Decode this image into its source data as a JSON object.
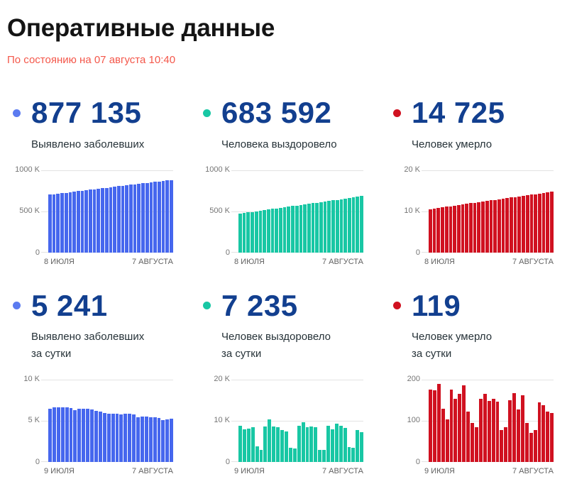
{
  "page": {
    "title": "Оперативные данные",
    "subtitle": "По состоянию на 07 августа 10:40"
  },
  "colors": {
    "blue_bar": "#4667ee",
    "blue_dot": "#5b7bf0",
    "teal_bar": "#18c7a4",
    "teal_dot": "#18c7a4",
    "red_bar": "#d01120",
    "red_dot": "#d01120",
    "number_navy": "#123f8f",
    "subtitle_red": "#f4574a",
    "gridline": "#e3e3e3",
    "axis_text": "#757575"
  },
  "cards": [
    {
      "value": "877 135",
      "label_lines": [
        "Выявлено заболевших"
      ],
      "dot_color": "#5b7bf0"
    },
    {
      "value": "683 592",
      "label_lines": [
        "Человека выздоровело"
      ],
      "dot_color": "#18c7a4"
    },
    {
      "value": "14 725",
      "label_lines": [
        "Человек умерло"
      ],
      "dot_color": "#d01120"
    },
    {
      "value": "5 241",
      "label_lines": [
        "Выявлено заболевших",
        "за сутки"
      ],
      "dot_color": "#5b7bf0"
    },
    {
      "value": "7 235",
      "label_lines": [
        "Человек выздоровело",
        "за сутки"
      ],
      "dot_color": "#18c7a4"
    },
    {
      "value": "119",
      "label_lines": [
        "Человек умерло",
        "за сутки"
      ],
      "dot_color": "#d01120"
    }
  ],
  "chart_data": [
    {
      "type": "bar",
      "title": "Выявлено заболевших (накопительно)",
      "color": "#4667ee",
      "unit": "thousands",
      "ymax": 1000,
      "yticks": [
        "1000 K",
        "500 K",
        "0"
      ],
      "x_start": "8 ИЮЛЯ",
      "x_end": "7 АВГУСТА",
      "values": [
        700,
        706,
        712,
        718,
        724,
        730,
        736,
        742,
        748,
        754,
        760,
        766,
        772,
        778,
        784,
        790,
        796,
        802,
        808,
        814,
        820,
        826,
        832,
        838,
        844,
        850,
        856,
        862,
        867,
        872,
        877
      ]
    },
    {
      "type": "bar",
      "title": "Человека выздоровело (накопительно)",
      "color": "#18c7a4",
      "unit": "thousands",
      "ymax": 1000,
      "yticks": [
        "1000 K",
        "500 K",
        "0"
      ],
      "x_start": "8 ИЮЛЯ",
      "x_end": "7 АВГУСТА",
      "values": [
        470,
        477,
        484,
        491,
        498,
        505,
        512,
        519,
        526,
        533,
        540,
        547,
        554,
        561,
        568,
        575,
        582,
        589,
        596,
        603,
        610,
        617,
        624,
        631,
        638,
        645,
        652,
        659,
        666,
        675,
        684
      ]
    },
    {
      "type": "bar",
      "title": "Человек умерло (накопительно)",
      "color": "#d01120",
      "unit": "thousands",
      "ymax": 20,
      "yticks": [
        "20 K",
        "10 K",
        "0"
      ],
      "x_start": "8 ИЮЛЯ",
      "x_end": "7 АВГУСТА",
      "values": [
        10.5,
        10.64,
        10.78,
        10.92,
        11.06,
        11.2,
        11.34,
        11.48,
        11.62,
        11.76,
        11.9,
        12.04,
        12.18,
        12.32,
        12.46,
        12.6,
        12.74,
        12.88,
        13.02,
        13.16,
        13.3,
        13.44,
        13.58,
        13.72,
        13.86,
        14.0,
        14.14,
        14.28,
        14.42,
        14.56,
        14.7
      ]
    },
    {
      "type": "bar",
      "title": "Выявлено заболевших за сутки",
      "color": "#4667ee",
      "unit": "thousands",
      "ymax": 10,
      "yticks": [
        "10 K",
        "5 K",
        "0"
      ],
      "x_start": "9 ИЮЛЯ",
      "x_end": "7 АВГУСТА",
      "values": [
        6.45,
        6.6,
        6.65,
        6.65,
        6.6,
        6.55,
        6.3,
        6.45,
        6.5,
        6.5,
        6.4,
        6.25,
        6.1,
        5.95,
        5.9,
        5.85,
        5.85,
        5.8,
        5.9,
        5.85,
        5.75,
        5.45,
        5.5,
        5.5,
        5.45,
        5.4,
        5.35,
        5.05,
        5.15,
        5.24
      ]
    },
    {
      "type": "bar",
      "title": "Человек выздоровело за сутки",
      "color": "#18c7a4",
      "unit": "thousands",
      "ymax": 20,
      "yticks": [
        "20 K",
        "10 K",
        "0"
      ],
      "x_start": "9 ИЮЛЯ",
      "x_end": "7 АВГУСТА",
      "values": [
        8.8,
        7.9,
        8.1,
        8.4,
        3.8,
        3.0,
        8.7,
        10.4,
        8.6,
        8.4,
        7.8,
        7.5,
        3.4,
        3.2,
        8.8,
        9.7,
        8.5,
        8.6,
        8.4,
        3.0,
        3.0,
        8.8,
        8.0,
        9.3,
        8.8,
        8.2,
        3.6,
        3.4,
        7.7,
        7.24
      ]
    },
    {
      "type": "bar",
      "title": "Человек умерло за сутки",
      "color": "#d01120",
      "unit": "count",
      "ymax": 200,
      "yticks": [
        "200",
        "100",
        "0"
      ],
      "x_start": "9 ИЮЛЯ",
      "x_end": "7 АВГУСТА",
      "values": [
        176,
        174,
        189,
        130,
        104,
        176,
        154,
        165,
        186,
        122,
        94,
        85,
        153,
        166,
        148,
        153,
        146,
        78,
        85,
        150,
        168,
        128,
        162,
        94,
        70,
        78,
        145,
        138,
        122,
        119
      ]
    }
  ]
}
